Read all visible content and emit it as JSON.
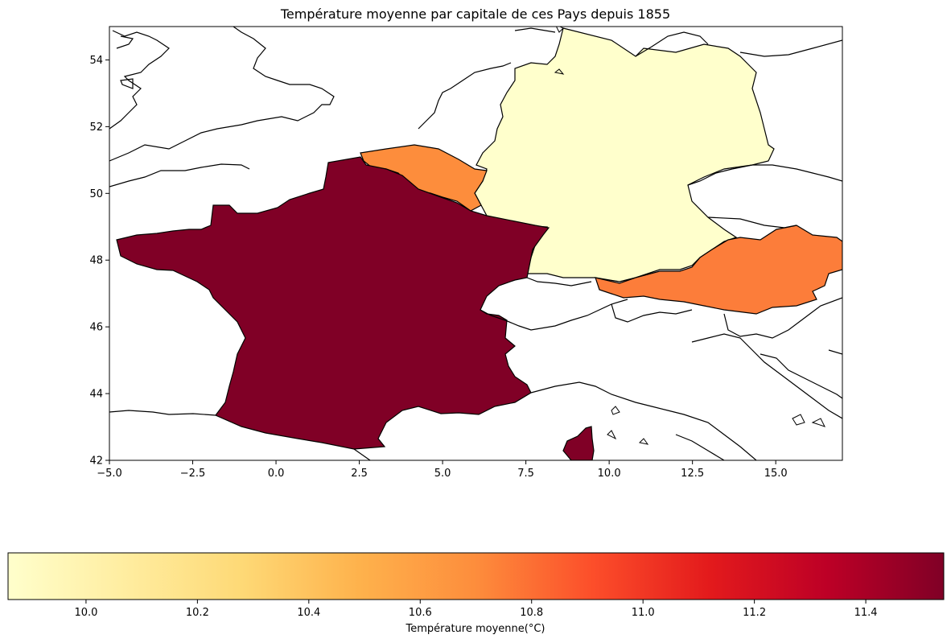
{
  "title": "Température moyenne par capitale de ces Pays depuis 1855",
  "map": {
    "lon_range": [
      -5,
      17
    ],
    "lat_range": [
      42,
      55
    ],
    "x_ticks": [
      {
        "value": -5.0,
        "label": "−5.0"
      },
      {
        "value": -2.5,
        "label": "−2.5"
      },
      {
        "value": 0.0,
        "label": "0.0"
      },
      {
        "value": 2.5,
        "label": "2.5"
      },
      {
        "value": 5.0,
        "label": "5.0"
      },
      {
        "value": 7.5,
        "label": "7.5"
      },
      {
        "value": 10.0,
        "label": "10.0"
      },
      {
        "value": 12.5,
        "label": "12.5"
      },
      {
        "value": 15.0,
        "label": "15.0"
      }
    ],
    "y_ticks": [
      {
        "value": 42,
        "label": "42"
      },
      {
        "value": 44,
        "label": "44"
      },
      {
        "value": 46,
        "label": "46"
      },
      {
        "value": 48,
        "label": "48"
      },
      {
        "value": 50,
        "label": "50"
      },
      {
        "value": 52,
        "label": "52"
      },
      {
        "value": 54,
        "label": "54"
      }
    ],
    "regions": [
      {
        "id": "france",
        "temperature": 11.54,
        "color": "#800026"
      },
      {
        "id": "belgium",
        "temperature": 10.68,
        "color": "#fd8d3c"
      },
      {
        "id": "germany",
        "temperature": 9.86,
        "color": "#ffffcc"
      },
      {
        "id": "austria",
        "temperature": 10.75,
        "color": "#fc7d3a"
      }
    ]
  },
  "colorbar": {
    "label": "Température moyenne(°C)",
    "min": 9.86,
    "max": 11.54,
    "colormap": "YlOrRd",
    "stops": [
      "#ffffcc",
      "#ffeda0",
      "#fed976",
      "#feb24c",
      "#fd8d3c",
      "#fc4e2a",
      "#e31a1c",
      "#bd0026",
      "#800026"
    ],
    "ticks": [
      {
        "value": 10.0,
        "label": "10.0"
      },
      {
        "value": 10.2,
        "label": "10.2"
      },
      {
        "value": 10.4,
        "label": "10.4"
      },
      {
        "value": 10.6,
        "label": "10.6"
      },
      {
        "value": 10.8,
        "label": "10.8"
      },
      {
        "value": 11.0,
        "label": "11.0"
      },
      {
        "value": 11.2,
        "label": "11.2"
      },
      {
        "value": 11.4,
        "label": "11.4"
      }
    ]
  }
}
